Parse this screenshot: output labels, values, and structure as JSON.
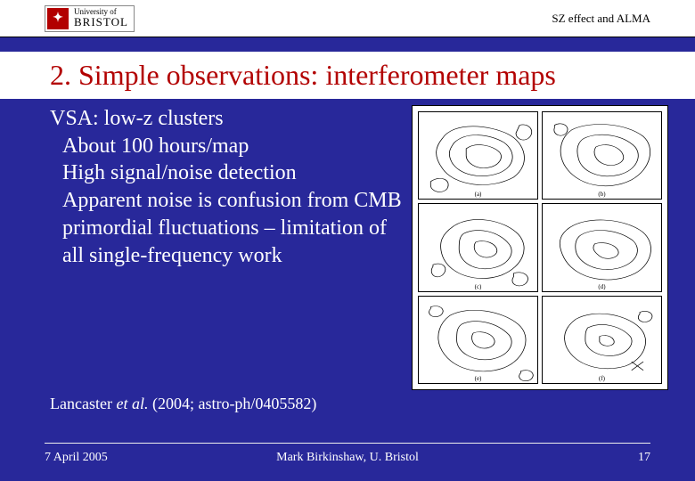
{
  "header": {
    "logo_university": "University of",
    "logo_name": "BRISTOL",
    "right_text": "SZ effect and ALMA"
  },
  "title": "2. Simple observations: interferometer maps",
  "body": {
    "line1": "VSA: low-z clusters",
    "bullets": [
      "About 100 hours/map",
      "High signal/noise detection",
      "Apparent noise is confusion from CMB primordial fluctuations – limitation of all single-frequency work"
    ]
  },
  "citation": {
    "authors": "Lancaster ",
    "etal": "et al.",
    "rest": " (2004; astro-ph/0405582)"
  },
  "figure": {
    "grid": [
      3,
      2
    ],
    "panel_labels": [
      "(a)",
      "(b)",
      "(c)",
      "(d)",
      "(e)",
      "(f)"
    ],
    "stroke_color": "#000000",
    "stroke_width": 0.6,
    "contours": [
      [
        "M20,30 C30,10 60,15 75,25 C90,35 95,60 80,75 C60,90 30,85 20,65 C12,50 14,40 20,30 Z",
        "M30,35 C40,22 60,25 72,35 C82,45 82,62 68,70 C52,78 34,72 28,58 C24,48 26,42 30,35 Z",
        "M40,42 C48,34 62,38 68,46 C72,52 68,62 58,64 C48,66 40,58 40,50 Z",
        "M85,15 C92,12 98,20 94,28 C90,35 82,32 82,24 Z",
        "M10,80 C18,72 28,78 24,88 C20,95 10,92 10,84 Z"
      ],
      [
        "M25,20 C40,10 70,12 85,28 C95,40 92,65 75,78 C55,92 28,85 18,60 C12,44 16,28 25,20 Z",
        "M35,30 C48,22 68,26 78,40 C84,50 80,66 65,72 C48,78 32,68 30,52 C28,42 30,34 35,30 Z",
        "M45,40 C54,34 66,40 68,50 C70,58 60,64 52,60 C44,56 42,46 45,40 Z",
        "M10,15 C16,10 24,16 20,24 C16,30 8,26 10,18 Z"
      ],
      [
        "M30,25 C45,12 72,18 84,35 C94,50 88,72 70,82 C50,92 26,82 20,60 C16,44 20,34 30,25 Z",
        "M38,34 C50,26 68,32 76,46 C82,56 76,70 62,74 C46,78 34,66 34,52 C34,44 34,38 38,34 Z",
        "M48,44 C56,40 66,46 66,54 C66,60 58,64 52,60 C46,56 46,48 48,44 Z",
        "M80,80 C88,76 96,84 90,92 C84,98 76,92 80,84 Z",
        "M12,70 C20,66 26,74 20,82 C14,88 8,80 12,72 Z"
      ],
      [
        "M22,28 C36,14 66,16 82,30 C96,42 94,68 78,80 C58,94 28,88 18,62 C12,46 14,36 22,28 Z",
        "M32,36 C44,26 64,30 76,42 C84,52 80,68 64,74 C46,80 30,68 28,54 C27,46 28,40 32,36 Z",
        "M44,46 C52,42 64,48 64,56 C64,62 54,66 48,60 C42,54 42,50 44,46 Z"
      ],
      [
        "M26,22 C42,10 70,16 84,32 C96,46 90,72 72,82 C52,92 26,84 18,58 C14,44 18,30 26,22 Z",
        "M36,32 C48,24 66,30 76,44 C82,54 76,68 62,72 C46,76 32,64 32,50 C32,42 32,36 36,32 Z",
        "M46,42 C54,38 64,44 64,52 C64,58 56,62 50,58 C44,54 44,46 46,42 Z",
        "M10,12 C18,8 24,16 18,22 C12,26 6,20 10,14 Z",
        "M86,86 C94,82 100,90 94,96 C88,100 82,94 86,88 Z"
      ],
      [
        "M28,26 C44,14 70,20 82,36 C92,50 86,72 70,80 C50,88 28,80 20,58 C16,44 20,34 28,26 Z",
        "M38,36 C50,28 66,34 74,46 C78,54 72,66 60,68 C46,70 36,60 36,50 C36,44 36,40 38,36 Z",
        "M48,46 C54,42 62,48 60,54 C58,58 50,58 48,52 Z",
        "M82,18 C90,14 96,22 90,28 C84,32 78,26 82,20 Z",
        "M75,75 L85,85 M85,75 L75,85"
      ]
    ]
  },
  "footer": {
    "date": "7 April 2005",
    "center": "Mark Birkinshaw, U. Bristol",
    "page": "17"
  },
  "colors": {
    "background": "#28289a",
    "title_color": "#b20000",
    "text_color": "#ffffff",
    "header_bg": "#ffffff"
  }
}
